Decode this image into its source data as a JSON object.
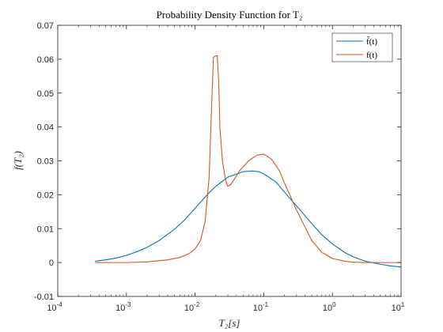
{
  "chart_data": {
    "type": "line",
    "title": "Probability Density Function for T₂",
    "xlabel": "T₂[s]",
    "ylabel": "f(T₂)",
    "x_scale": "log",
    "xlim": [
      0.0001,
      10
    ],
    "ylim": [
      -0.01,
      0.07
    ],
    "x_tick_labels": [
      {
        "base": "10",
        "exp": "-4"
      },
      {
        "base": "10",
        "exp": "-3"
      },
      {
        "base": "10",
        "exp": "-2"
      },
      {
        "base": "10",
        "exp": "-1"
      },
      {
        "base": "10",
        "exp": "0"
      },
      {
        "base": "10",
        "exp": "1"
      }
    ],
    "y_tick_labels": [
      "-0.01",
      "0",
      "0.01",
      "0.02",
      "0.03",
      "0.04",
      "0.05",
      "0.06",
      "0.07"
    ],
    "grid": false,
    "legend_position": "top-right",
    "series": [
      {
        "name": "f̂(t)",
        "color": "#0072BD",
        "x": [
          0.00035,
          0.0005,
          0.0007,
          0.001,
          0.0015,
          0.002,
          0.003,
          0.005,
          0.007,
          0.01,
          0.015,
          0.02,
          0.03,
          0.05,
          0.07,
          0.085,
          0.1,
          0.15,
          0.2,
          0.3,
          0.5,
          0.7,
          1.0,
          1.5,
          2.0,
          3.0,
          5.0,
          7.0,
          10.0
        ],
        "y": [
          0.0004,
          0.0008,
          0.0013,
          0.0021,
          0.0034,
          0.0045,
          0.0065,
          0.0098,
          0.0125,
          0.016,
          0.02,
          0.0225,
          0.0252,
          0.0268,
          0.027,
          0.0268,
          0.0262,
          0.0238,
          0.0208,
          0.0167,
          0.0115,
          0.0082,
          0.0055,
          0.003,
          0.0017,
          0.0004,
          -0.0005,
          -0.001,
          -0.0013
        ]
      },
      {
        "name": "f(t)",
        "color": "#D95319",
        "x": [
          0.00035,
          0.001,
          0.002,
          0.004,
          0.006,
          0.008,
          0.01,
          0.012,
          0.014,
          0.016,
          0.017,
          0.018,
          0.0185,
          0.02,
          0.021,
          0.022,
          0.023,
          0.025,
          0.028,
          0.03,
          0.033,
          0.037,
          0.045,
          0.06,
          0.08,
          0.1,
          0.13,
          0.17,
          0.2,
          0.3,
          0.5,
          0.7,
          1.0,
          1.5,
          2.0,
          3.0,
          5.0,
          10.0
        ],
        "y": [
          0.0,
          0.0,
          0.0002,
          0.0008,
          0.0015,
          0.0025,
          0.004,
          0.0065,
          0.012,
          0.025,
          0.04,
          0.054,
          0.0605,
          0.061,
          0.061,
          0.054,
          0.04,
          0.03,
          0.024,
          0.0225,
          0.023,
          0.0245,
          0.0272,
          0.03,
          0.0317,
          0.032,
          0.0305,
          0.027,
          0.0235,
          0.0155,
          0.0065,
          0.003,
          0.0012,
          0.0004,
          0.0001,
          0.0,
          0.0,
          0.0
        ]
      }
    ]
  }
}
